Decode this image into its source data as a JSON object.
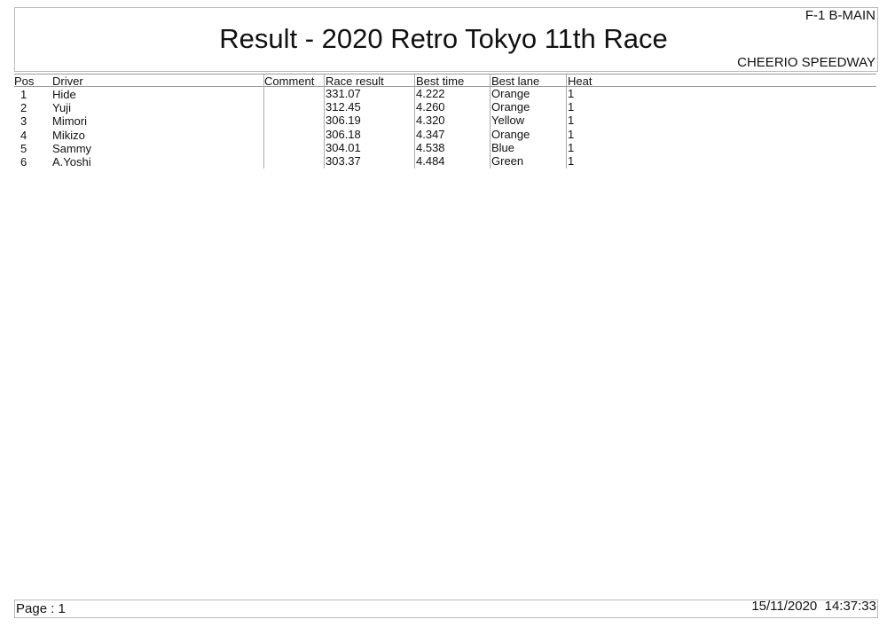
{
  "header": {
    "title": "Result - 2020 Retro Tokyo 11th Race",
    "category": "F-1 B-MAIN",
    "venue": "CHEERIO SPEEDWAY"
  },
  "table": {
    "columns": [
      "Pos",
      "Driver",
      "Comment",
      "Race result",
      "Best time",
      "Best lane",
      "Heat"
    ],
    "rows": [
      [
        "1",
        "Hide",
        "",
        "331.07",
        "4.222",
        "Orange",
        "1"
      ],
      [
        "2",
        "Yuji",
        "",
        "312.45",
        "4.260",
        "Orange",
        "1"
      ],
      [
        "3",
        "Mimori",
        "",
        "306.19",
        "4.320",
        "Yellow",
        "1"
      ],
      [
        "4",
        "Mikizo",
        "",
        "306.18",
        "4.347",
        "Orange",
        "1"
      ],
      [
        "5",
        "Sammy",
        "",
        "304.01",
        "4.538",
        "Blue",
        "1"
      ],
      [
        "6",
        "A.Yoshi",
        "",
        "303.37",
        "4.484",
        "Green",
        "1"
      ]
    ]
  },
  "footer": {
    "page": "Page : 1",
    "datetime": "15/11/2020  14:37:33"
  }
}
